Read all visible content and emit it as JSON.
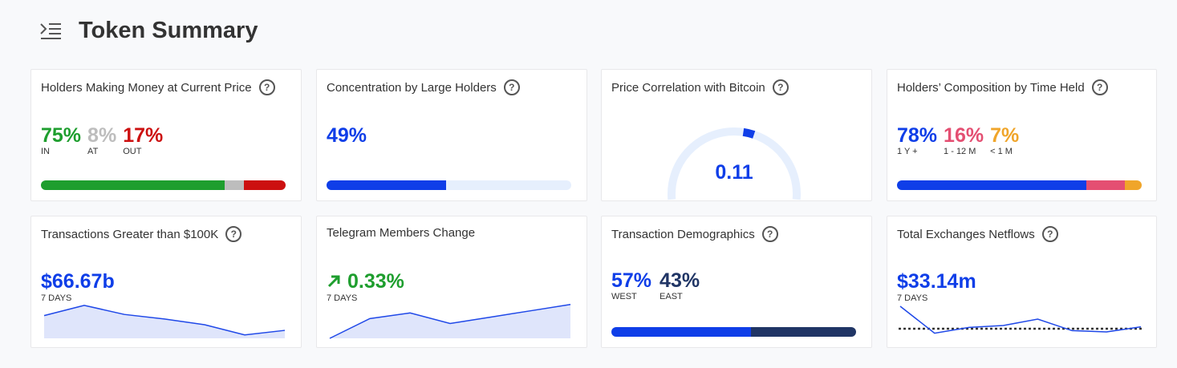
{
  "page": {
    "title": "Token Summary",
    "menu_icon": "menu-collapse-icon"
  },
  "help_glyph": "?",
  "colors": {
    "blue": "#0f3ee8",
    "green": "#1e9e2e",
    "red": "#cc1010",
    "gray": "#bdbdbd",
    "light_blue": "#e6effd",
    "pink": "#e44f72",
    "orange": "#f0a52a",
    "navy": "#203565"
  },
  "cards": {
    "money": {
      "title": "Holders Making Money at Current Price",
      "in": {
        "value": "75%",
        "label": "IN"
      },
      "at": {
        "value": "8%",
        "label": "AT"
      },
      "out": {
        "value": "17%",
        "label": "OUT"
      },
      "bar": [
        0.75,
        0.08,
        0.17
      ]
    },
    "concentration": {
      "title": "Concentration by Large Holders",
      "value": "49%",
      "bar": 0.49
    },
    "correlation": {
      "title": "Price Correlation with Bitcoin",
      "value": "0.11",
      "gauge": 0.11
    },
    "composition": {
      "title": "Holders’ Composition by Time Held",
      "long": {
        "value": "78%",
        "label": "1 Y +"
      },
      "mid": {
        "value": "16%",
        "label": "1 - 12 M"
      },
      "short": {
        "value": "7%",
        "label": "< 1 M"
      },
      "bar": [
        0.78,
        0.16,
        0.07
      ]
    },
    "transactions": {
      "title": "Transactions Greater than $100K",
      "value": "$66.67b",
      "period": "7 DAYS",
      "trend": [
        40,
        58,
        42,
        34,
        24,
        6,
        14
      ]
    },
    "telegram": {
      "title": "Telegram Members Change",
      "value": "0.33%",
      "period": "7 DAYS",
      "arrow_icon": "arrow-up-right-icon",
      "trend": [
        0,
        28,
        36,
        21,
        30,
        39,
        48
      ]
    },
    "demographics": {
      "title": "Transaction Demographics",
      "west": {
        "value": "57%",
        "label": "WEST"
      },
      "east": {
        "value": "43%",
        "label": "EAST"
      },
      "bar": [
        0.57,
        0.43
      ]
    },
    "netflows": {
      "title": "Total Exchanges Netflows",
      "value": "$33.14m",
      "period": "7 DAYS",
      "trend": [
        50,
        8,
        17,
        20,
        30,
        12,
        10,
        18
      ],
      "baseline": 15
    }
  }
}
